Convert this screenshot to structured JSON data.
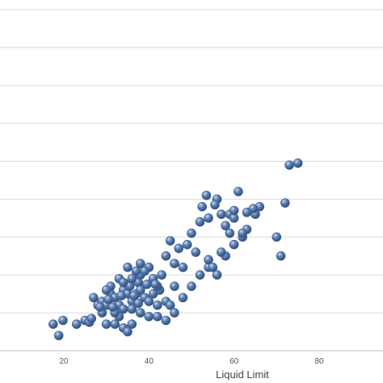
{
  "chart_data": {
    "type": "scatter",
    "title": "",
    "xlabel": "Liquid Limit",
    "ylabel": "",
    "xlim": [
      5,
      95
    ],
    "ylim": [
      0,
      90
    ],
    "xticks": [
      "20",
      "40",
      "60",
      "80"
    ],
    "grid": true,
    "legend": "none",
    "marker_color": "#5b7fb0",
    "marker_highlight": "#c9d9ee",
    "marker_shadow": "#2f4f7f",
    "series": [
      {
        "points": [
          [
            17.5,
            7
          ],
          [
            18.8,
            4
          ],
          [
            19.8,
            8
          ],
          [
            23,
            7
          ],
          [
            25,
            8
          ],
          [
            26,
            7.5
          ],
          [
            30,
            7
          ],
          [
            32,
            7
          ],
          [
            34,
            6
          ],
          [
            35,
            5
          ],
          [
            36,
            7
          ],
          [
            33,
            9
          ],
          [
            28,
            12
          ],
          [
            29,
            13
          ],
          [
            30,
            12
          ],
          [
            31,
            15
          ],
          [
            32,
            14
          ],
          [
            33,
            12
          ],
          [
            34,
            16
          ],
          [
            35,
            15
          ],
          [
            35.5,
            17
          ],
          [
            36,
            13
          ],
          [
            37,
            15
          ],
          [
            37.5,
            18
          ],
          [
            38,
            16
          ],
          [
            39,
            14
          ],
          [
            40,
            13
          ],
          [
            41,
            15
          ],
          [
            42,
            12
          ],
          [
            42.5,
            16
          ],
          [
            44,
            13
          ],
          [
            45,
            12
          ],
          [
            46,
            17
          ],
          [
            48,
            14
          ],
          [
            50,
            17
          ],
          [
            52,
            20
          ],
          [
            54,
            22
          ],
          [
            56,
            20
          ],
          [
            58,
            25
          ],
          [
            60,
            28
          ],
          [
            62,
            30
          ],
          [
            63,
            32
          ],
          [
            65,
            36
          ],
          [
            66,
            38
          ],
          [
            52,
            34
          ],
          [
            54,
            35
          ],
          [
            56,
            40
          ],
          [
            57,
            36
          ],
          [
            58,
            33
          ],
          [
            59,
            36
          ],
          [
            60,
            35
          ],
          [
            62,
            31
          ],
          [
            44,
            25
          ],
          [
            46,
            23
          ],
          [
            47,
            27
          ],
          [
            48,
            22
          ],
          [
            49,
            28
          ],
          [
            50,
            31
          ],
          [
            51,
            26
          ],
          [
            45,
            29
          ],
          [
            31,
            17
          ],
          [
            33,
            19
          ],
          [
            34,
            18
          ],
          [
            36,
            19
          ],
          [
            38,
            20
          ],
          [
            40,
            22
          ],
          [
            41,
            19
          ],
          [
            42,
            17
          ],
          [
            43,
            20
          ],
          [
            30,
            16
          ],
          [
            29,
            10
          ],
          [
            32,
            10
          ],
          [
            34,
            11
          ],
          [
            36,
            11
          ],
          [
            38,
            10
          ],
          [
            40,
            9
          ],
          [
            42,
            9
          ],
          [
            44,
            8
          ],
          [
            46,
            10
          ],
          [
            37,
            21
          ],
          [
            39,
            21
          ],
          [
            27,
            14
          ],
          [
            38,
            23
          ],
          [
            35,
            22
          ],
          [
            54,
            24
          ],
          [
            55,
            22
          ],
          [
            57,
            26
          ],
          [
            63,
            36.5
          ],
          [
            70,
            30
          ],
          [
            71,
            25
          ],
          [
            72,
            39
          ],
          [
            73,
            49
          ],
          [
            75,
            49.5
          ],
          [
            61,
            42
          ],
          [
            60,
            37
          ],
          [
            59,
            31
          ],
          [
            55.5,
            38.5
          ],
          [
            53.5,
            41
          ],
          [
            52.5,
            38
          ],
          [
            64.5,
            37.5
          ],
          [
            41.5,
            17.5
          ],
          [
            33.5,
            14.5
          ],
          [
            36.5,
            14.5
          ],
          [
            30.5,
            13.5
          ],
          [
            28.5,
            11.5
          ],
          [
            31.5,
            11.5
          ],
          [
            26.5,
            8.5
          ],
          [
            37.5,
            12.5
          ],
          [
            39.5,
            17.5
          ]
        ]
      }
    ]
  }
}
